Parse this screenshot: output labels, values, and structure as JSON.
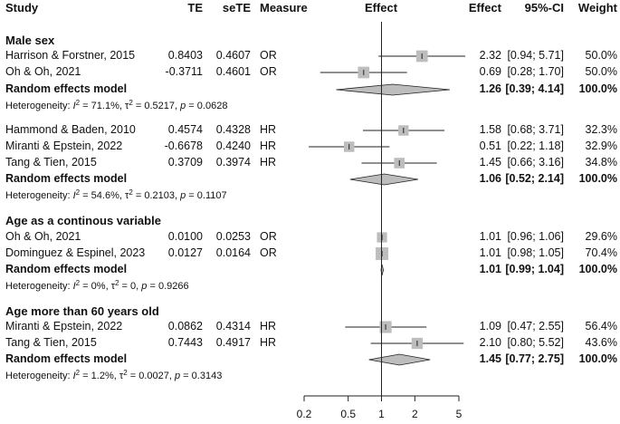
{
  "headers": {
    "study": "Study",
    "te": "TE",
    "sete": "seTE",
    "measure": "Measure",
    "effect_plot": "Effect",
    "effect": "Effect",
    "ci": "95%-CI",
    "weight": "Weight"
  },
  "groups": [
    {
      "title": "Male sex",
      "studies": [
        {
          "name": "Harrison & Forstner, 2015",
          "te": "0.8403",
          "sete": "0.4607",
          "measure": "OR",
          "effect": "2.32",
          "ci": "[0.94; 5.71]",
          "weight": "50.0%",
          "est": 2.32,
          "lo": 0.94,
          "hi": 5.71,
          "w": 50.0
        },
        {
          "name": "Oh & Oh, 2021",
          "te": "-0.3711",
          "sete": "0.4601",
          "measure": "OR",
          "effect": "0.69",
          "ci": "[0.28; 1.70]",
          "weight": "50.0%",
          "est": 0.69,
          "lo": 0.28,
          "hi": 1.7,
          "w": 50.0
        }
      ],
      "pooled": {
        "label": "Random effects model",
        "effect": "1.26",
        "ci": "[0.39; 4.14]",
        "weight": "100.0%",
        "est": 1.26,
        "lo": 0.39,
        "hi": 4.14
      },
      "het": {
        "prefix": "Heterogeneity: ",
        "i2": "71.1%",
        "tau2": "0.5217",
        "p": "0.0628"
      }
    },
    {
      "title": "",
      "studies": [
        {
          "name": "Hammond & Baden, 2010",
          "te": "0.4574",
          "sete": "0.4328",
          "measure": "HR",
          "effect": "1.58",
          "ci": "[0.68; 3.71]",
          "weight": "32.3%",
          "est": 1.58,
          "lo": 0.68,
          "hi": 3.71,
          "w": 32.3
        },
        {
          "name": "Miranti & Epstein, 2022",
          "te": "-0.6678",
          "sete": "0.4240",
          "measure": "HR",
          "effect": "0.51",
          "ci": "[0.22; 1.18]",
          "weight": "32.9%",
          "est": 0.51,
          "lo": 0.22,
          "hi": 1.18,
          "w": 32.9
        },
        {
          "name": "Tang & Tien, 2015",
          "te": "0.3709",
          "sete": "0.3974",
          "measure": "HR",
          "effect": "1.45",
          "ci": "[0.66; 3.16]",
          "weight": "34.8%",
          "est": 1.45,
          "lo": 0.66,
          "hi": 3.16,
          "w": 34.8
        }
      ],
      "pooled": {
        "label": "Random effects model",
        "effect": "1.06",
        "ci": "[0.52; 2.14]",
        "weight": "100.0%",
        "est": 1.06,
        "lo": 0.52,
        "hi": 2.14
      },
      "het": {
        "prefix": "Heterogeneity: ",
        "i2": "54.6%",
        "tau2": "0.2103",
        "p": "0.1107"
      }
    },
    {
      "title": "Age as a continous variable",
      "studies": [
        {
          "name": "Oh & Oh, 2021",
          "te": "0.0100",
          "sete": "0.0253",
          "measure": "OR",
          "effect": "1.01",
          "ci": "[0.96; 1.06]",
          "weight": "29.6%",
          "est": 1.01,
          "lo": 0.96,
          "hi": 1.06,
          "w": 29.6
        },
        {
          "name": "Dominguez & Espinel, 2023",
          "te": "0.0127",
          "sete": "0.0164",
          "measure": "OR",
          "effect": "1.01",
          "ci": "[0.98; 1.05]",
          "weight": "70.4%",
          "est": 1.01,
          "lo": 0.98,
          "hi": 1.05,
          "w": 70.4
        }
      ],
      "pooled": {
        "label": "Random effects model",
        "effect": "1.01",
        "ci": "[0.99; 1.04]",
        "weight": "100.0%",
        "est": 1.01,
        "lo": 0.99,
        "hi": 1.04
      },
      "het": {
        "prefix": "Heterogeneity: ",
        "i2": "0%",
        "tau2": "0",
        "p": "0.9266"
      }
    },
    {
      "title": "Age more than 60 years old",
      "studies": [
        {
          "name": "Miranti & Epstein, 2022",
          "te": "0.0862",
          "sete": "0.4314",
          "measure": "HR",
          "effect": "1.09",
          "ci": "[0.47; 2.55]",
          "weight": "56.4%",
          "est": 1.09,
          "lo": 0.47,
          "hi": 2.55,
          "w": 56.4
        },
        {
          "name": "Tang & Tien, 2015",
          "te": "0.7443",
          "sete": "0.4917",
          "measure": "HR",
          "effect": "2.10",
          "ci": "[0.80; 5.52]",
          "weight": "43.6%",
          "est": 2.1,
          "lo": 0.8,
          "hi": 5.52,
          "w": 43.6
        }
      ],
      "pooled": {
        "label": "Random effects model",
        "effect": "1.45",
        "ci": "[0.77; 2.75]",
        "weight": "100.0%",
        "est": 1.45,
        "lo": 0.77,
        "hi": 2.75
      },
      "het": {
        "prefix": "Heterogeneity: ",
        "i2": "1.2%",
        "tau2": "0.0027",
        "p": "0.3143"
      }
    }
  ],
  "chart_data": {
    "type": "forest",
    "scale": "log",
    "reference_line": 1,
    "xticks": [
      0.2,
      0.5,
      1,
      2,
      5
    ],
    "xtick_labels": [
      "0.2",
      "0.5",
      "1",
      "2",
      "5"
    ],
    "xlim": [
      0.2,
      5
    ],
    "series": [
      {
        "name": "Male sex",
        "studies": [
          "Harrison & Forstner, 2015",
          "Oh & Oh, 2021"
        ],
        "effects": [
          2.32,
          0.69
        ],
        "lower": [
          0.94,
          0.28
        ],
        "upper": [
          5.71,
          1.7
        ],
        "weights": [
          50.0,
          50.0
        ],
        "pooled": [
          1.26,
          0.39,
          4.14
        ]
      },
      {
        "name": "",
        "studies": [
          "Hammond & Baden, 2010",
          "Miranti & Epstein, 2022",
          "Tang & Tien, 2015"
        ],
        "effects": [
          1.58,
          0.51,
          1.45
        ],
        "lower": [
          0.68,
          0.22,
          0.66
        ],
        "upper": [
          3.71,
          1.18,
          3.16
        ],
        "weights": [
          32.3,
          32.9,
          34.8
        ],
        "pooled": [
          1.06,
          0.52,
          2.14
        ]
      },
      {
        "name": "Age as a continous variable",
        "studies": [
          "Oh & Oh, 2021",
          "Dominguez & Espinel, 2023"
        ],
        "effects": [
          1.01,
          1.01
        ],
        "lower": [
          0.96,
          0.98
        ],
        "upper": [
          1.06,
          1.05
        ],
        "weights": [
          29.6,
          70.4
        ],
        "pooled": [
          1.01,
          0.99,
          1.04
        ]
      },
      {
        "name": "Age more than 60 years old",
        "studies": [
          "Miranti & Epstein, 2022",
          "Tang & Tien, 2015"
        ],
        "effects": [
          1.09,
          2.1
        ],
        "lower": [
          0.47,
          0.8
        ],
        "upper": [
          2.55,
          5.52
        ],
        "weights": [
          56.4,
          43.6
        ],
        "pooled": [
          1.45,
          0.77,
          2.75
        ]
      }
    ]
  }
}
